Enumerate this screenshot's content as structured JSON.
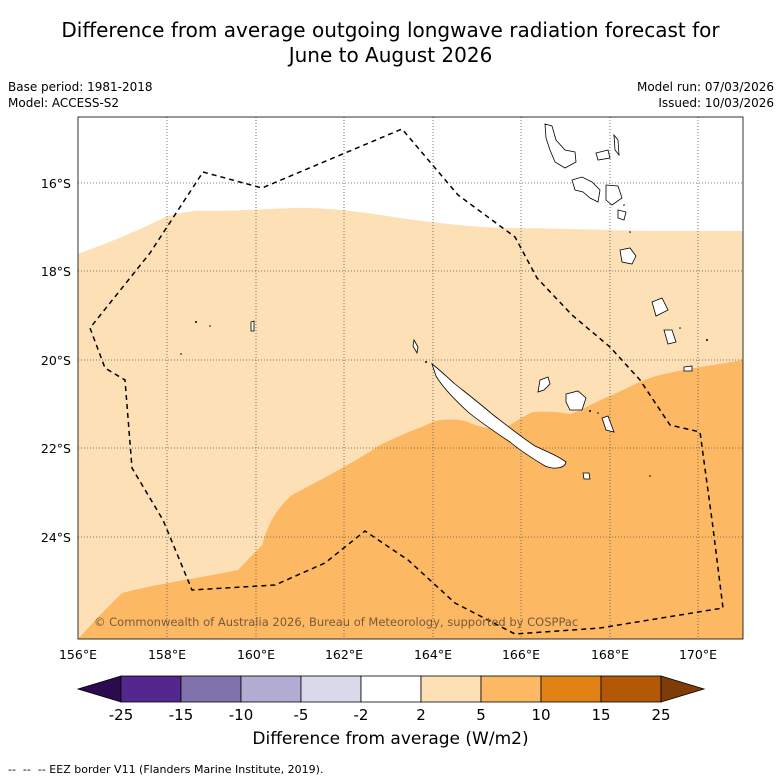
{
  "title_line1": "Difference from average outgoing longwave radiation forecast for",
  "title_line2": "June to August 2026",
  "base_period": "Base period: 1981-2018",
  "model": "Model: ACCESS-S2",
  "model_run": "Model run: 07/03/2026",
  "issued": "Issued: 10/03/2026",
  "copyright": "© Commonwealth of Australia 2026, Bureau of Meteorology, supported by COSPPac",
  "lon_labels": [
    "156°E",
    "158°E",
    "160°E",
    "162°E",
    "164°E",
    "166°E",
    "168°E",
    "170°E"
  ],
  "lat_labels": [
    "16°S",
    "18°S",
    "20°S",
    "22°S",
    "24°S"
  ],
  "colorbar": {
    "title": "Difference from average (W/m2)",
    "ticks": [
      "-25",
      "-15",
      "-10",
      "-5",
      "-2",
      "2",
      "5",
      "10",
      "15",
      "25"
    ],
    "colors": [
      "#2d0a4e",
      "#54278f",
      "#8073ac",
      "#b2abd2",
      "#d8daeb",
      "#ffffff",
      "#fee0b6",
      "#fdb863",
      "#e08214",
      "#b35806",
      "#7f3b08"
    ]
  },
  "footnote": "--  --  -- EEZ border V11 (Flanders Marine Institute, 2019).",
  "colors": {
    "band_2_5": "#fee0b6",
    "band_5_10": "#fdb863"
  }
}
